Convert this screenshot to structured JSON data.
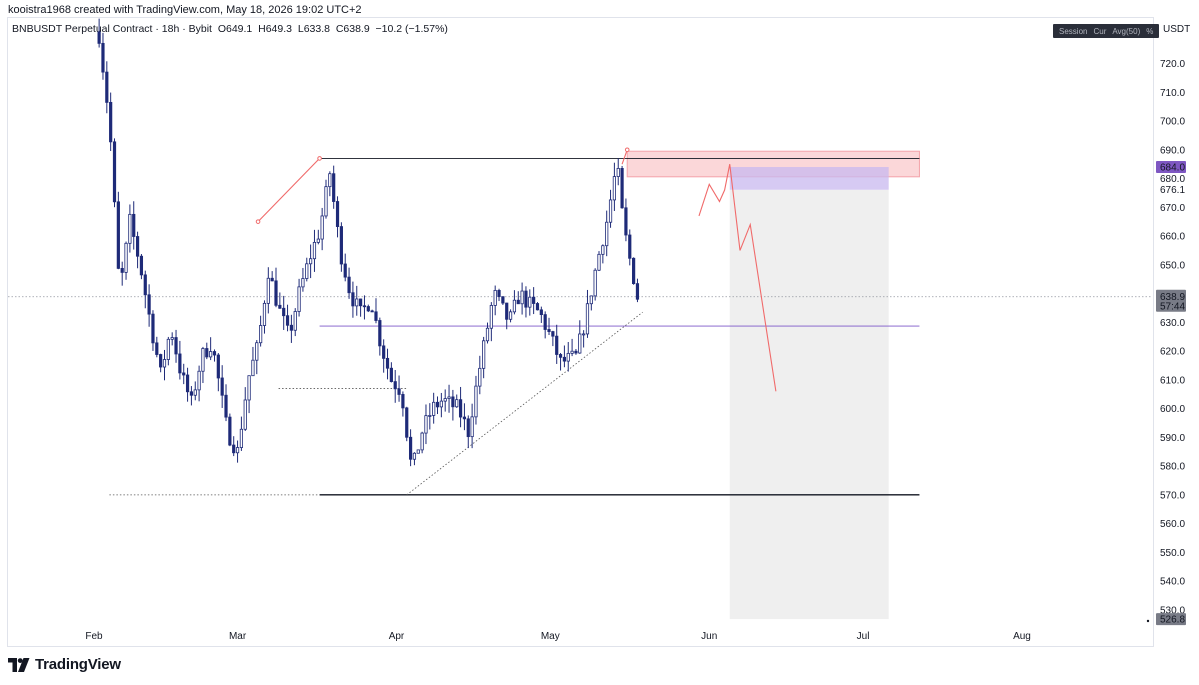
{
  "caption": "kooistra1968 created with TradingView.com, May 18, 2026 19:02 UTC+2",
  "legend": {
    "symbol": "BNBUSDT Perpetual Contract · 18h · Bybit",
    "open_key": "O",
    "open": "649.1",
    "high_key": "H",
    "high": "649.3",
    "low_key": "L",
    "low": "633.8",
    "close_key": "C",
    "close": "638.9",
    "change": "−10.2 (−1.57%)"
  },
  "toggles": [
    "Session",
    "Cur",
    "Avg(50)",
    "%"
  ],
  "currency": "USDT",
  "brand": "TradingView",
  "colors": {
    "candle": "#1e2a78",
    "red_line": "#f06a6a",
    "resistance_zone": "#f9c9cc",
    "purple_box": "#c8b8ef",
    "grey_box": "#efefef",
    "purple_line": "#7b56c9",
    "price_badge": "#7e57c2"
  },
  "chart_data": {
    "type": "candlestick",
    "ylim": [
      523,
      732
    ],
    "y_ticks": [
      "720.0",
      "710.0",
      "700.0",
      "690.0",
      "680.0",
      "670.0",
      "660.0",
      "650.0",
      "640.0",
      "630.0",
      "620.0",
      "610.0",
      "600.0",
      "590.0",
      "580.0",
      "570.0",
      "560.0",
      "550.0",
      "540.0",
      "530.0"
    ],
    "x_ticks": [
      {
        "label": "Feb",
        "date": "2026-02-01"
      },
      {
        "label": "Mar",
        "date": "2026-03-01"
      },
      {
        "label": "Apr",
        "date": "2026-04-01"
      },
      {
        "label": "May",
        "date": "2026-05-01"
      },
      {
        "label": "Jun",
        "date": "2026-06-01"
      },
      {
        "label": "Jul",
        "date": "2026-07-01"
      },
      {
        "label": "Aug",
        "date": "2026-08-01"
      }
    ],
    "price_labels": [
      {
        "value": 684.0,
        "text": "684.0",
        "style": "purple"
      },
      {
        "value": 676.1,
        "text": "676.1",
        "style": "plain"
      },
      {
        "value": 638.9,
        "text": "638.9",
        "style": "grey",
        "sub": "57:44"
      },
      {
        "value": 526.8,
        "text": "526.8",
        "style": "grey"
      }
    ],
    "last_price": 638.9,
    "candles_start": "2026-02-02",
    "candles_end": "2026-05-18",
    "anchors": [
      {
        "date": "2026-02-02",
        "price": 730
      },
      {
        "date": "2026-02-04",
        "price": 700
      },
      {
        "date": "2026-02-06",
        "price": 640
      },
      {
        "date": "2026-02-08",
        "price": 665
      },
      {
        "date": "2026-02-10",
        "price": 650
      },
      {
        "date": "2026-02-12",
        "price": 630
      },
      {
        "date": "2026-02-14",
        "price": 612
      },
      {
        "date": "2026-02-16",
        "price": 628
      },
      {
        "date": "2026-02-18",
        "price": 612
      },
      {
        "date": "2026-02-20",
        "price": 602
      },
      {
        "date": "2026-02-22",
        "price": 618
      },
      {
        "date": "2026-02-24",
        "price": 623
      },
      {
        "date": "2026-02-27",
        "price": 592
      },
      {
        "date": "2026-03-01",
        "price": 585
      },
      {
        "date": "2026-03-03",
        "price": 610
      },
      {
        "date": "2026-03-05",
        "price": 622
      },
      {
        "date": "2026-03-07",
        "price": 648
      },
      {
        "date": "2026-03-09",
        "price": 635
      },
      {
        "date": "2026-03-11",
        "price": 625
      },
      {
        "date": "2026-03-13",
        "price": 640
      },
      {
        "date": "2026-03-15",
        "price": 652
      },
      {
        "date": "2026-03-17",
        "price": 662
      },
      {
        "date": "2026-03-19",
        "price": 682
      },
      {
        "date": "2026-03-21",
        "price": 655
      },
      {
        "date": "2026-03-23",
        "price": 640
      },
      {
        "date": "2026-03-25",
        "price": 633
      },
      {
        "date": "2026-03-27",
        "price": 638
      },
      {
        "date": "2026-03-29",
        "price": 622
      },
      {
        "date": "2026-03-31",
        "price": 610
      },
      {
        "date": "2026-04-02",
        "price": 606
      },
      {
        "date": "2026-04-04",
        "price": 578
      },
      {
        "date": "2026-04-06",
        "price": 592
      },
      {
        "date": "2026-04-08",
        "price": 600
      },
      {
        "date": "2026-04-10",
        "price": 603
      },
      {
        "date": "2026-04-13",
        "price": 600
      },
      {
        "date": "2026-04-15",
        "price": 592
      },
      {
        "date": "2026-04-17",
        "price": 612
      },
      {
        "date": "2026-04-20",
        "price": 640
      },
      {
        "date": "2026-04-23",
        "price": 630
      },
      {
        "date": "2026-04-25",
        "price": 640
      },
      {
        "date": "2026-04-27",
        "price": 636
      },
      {
        "date": "2026-04-29",
        "price": 633
      },
      {
        "date": "2026-05-01",
        "price": 625
      },
      {
        "date": "2026-05-03",
        "price": 616
      },
      {
        "date": "2026-05-06",
        "price": 618
      },
      {
        "date": "2026-05-08",
        "price": 632
      },
      {
        "date": "2026-05-10",
        "price": 650
      },
      {
        "date": "2026-05-12",
        "price": 665
      },
      {
        "date": "2026-05-14",
        "price": 685
      },
      {
        "date": "2026-05-15",
        "price": 668
      },
      {
        "date": "2026-05-16",
        "price": 656
      },
      {
        "date": "2026-05-17",
        "price": 648
      },
      {
        "date": "2026-05-18",
        "price": 638.9
      }
    ],
    "drawings": {
      "resistance_zone": {
        "x1": "2026-05-16",
        "x2": "2026-07-12",
        "y1": 680.6,
        "y2": 689.5
      },
      "projection_box_top": {
        "x1": "2026-06-05",
        "x2": "2026-07-06",
        "y1": 676.1,
        "y2": 684.0
      },
      "projection_box_bottom": {
        "x1": "2026-06-05",
        "x2": "2026-07-06",
        "y1": 526.8,
        "y2": 676.1
      },
      "high_line": {
        "x1": "2026-03-17",
        "x2": "2026-07-12",
        "y": 687.0
      },
      "support_line": {
        "x1": "2026-03-17",
        "x2": "2026-07-12",
        "y": 570.0
      },
      "mid_line": {
        "x1": "2026-03-17",
        "x2": "2026-07-12",
        "y": 628.7
      },
      "low_dotted": {
        "x1": "2026-02-04",
        "x2": "2026-03-17",
        "y": 570.0
      },
      "mar_low_dotted": {
        "x1": "2026-03-09",
        "x2": "2026-04-03",
        "y": 607.0
      },
      "trendline": {
        "x1": "2026-04-03",
        "y1": 570.0,
        "x2": "2026-05-19",
        "y2": 633.5
      },
      "red_rise": [
        {
          "date": "2026-03-05",
          "price": 665
        },
        {
          "date": "2026-03-17",
          "price": 687
        }
      ],
      "red_spike": [
        {
          "date": "2026-05-15",
          "price": 685
        },
        {
          "date": "2026-05-16",
          "price": 690
        }
      ],
      "forecast_path": [
        {
          "date": "2026-05-30",
          "price": 667
        },
        {
          "date": "2026-06-01",
          "price": 678
        },
        {
          "date": "2026-06-03",
          "price": 672
        },
        {
          "date": "2026-06-04",
          "price": 676
        },
        {
          "date": "2026-06-05",
          "price": 685
        },
        {
          "date": "2026-06-07",
          "price": 655
        },
        {
          "date": "2026-06-09",
          "price": 664
        },
        {
          "date": "2026-06-14",
          "price": 606
        }
      ]
    }
  }
}
